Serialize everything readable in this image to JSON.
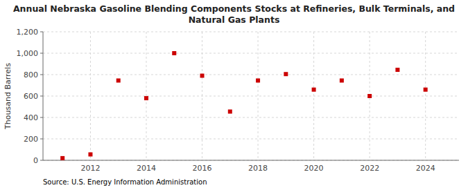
{
  "chart_data": {
    "type": "scatter",
    "title": "Annual Nebraska Gasoline Blending Components Stocks at Refineries, Bulk Terminals, and\nNatural Gas Plants",
    "y_label": "Thousand Barrels",
    "source": "Source: U.S. Energy Information Administration",
    "x": [
      2011,
      2012,
      2013,
      2014,
      2015,
      2016,
      2017,
      2018,
      2019,
      2020,
      2021,
      2022,
      2023,
      2024
    ],
    "values": [
      20,
      55,
      745,
      580,
      1000,
      790,
      455,
      745,
      805,
      660,
      745,
      600,
      845,
      660
    ],
    "color": "#cc0000",
    "marker": "square",
    "xlim": [
      2010.3,
      2025.2
    ],
    "xticks": [
      2012,
      2014,
      2016,
      2018,
      2020,
      2022,
      2024
    ],
    "ylim": [
      0,
      1200
    ],
    "yticks": [
      0,
      200,
      400,
      600,
      800,
      {
        "value": 1000,
        "label": "1,000"
      },
      {
        "value": 1200,
        "label": "1,200"
      }
    ],
    "grid": true
  }
}
